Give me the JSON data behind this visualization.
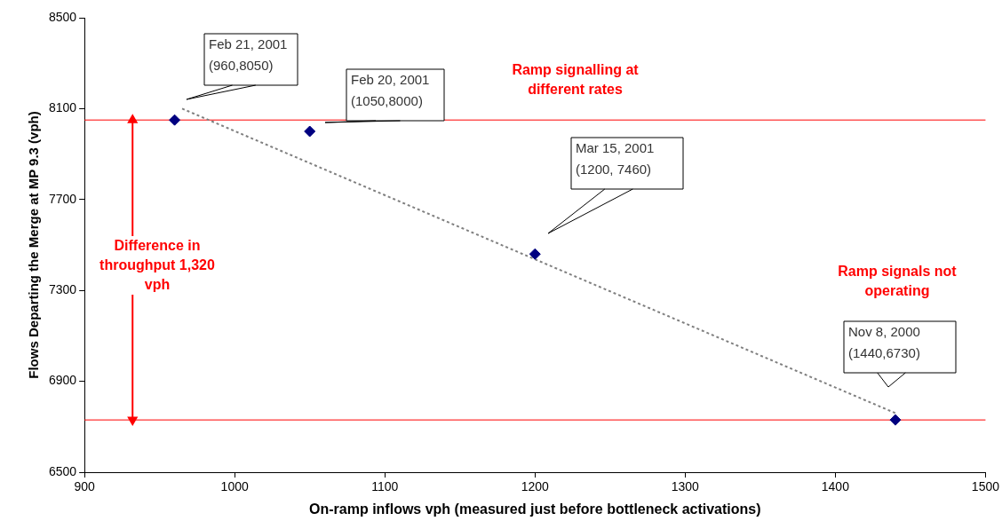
{
  "chart_data": {
    "type": "scatter",
    "xlabel": "On-ramp inflows vph (measured just before bottleneck activations)",
    "ylabel": "Flows Departing the Merge at MP 9.3 (vph)",
    "series": [
      {
        "type": "scatter",
        "color": "#000080",
        "x": [
          960,
          1050,
          1200,
          1440
        ],
        "values": [
          8050,
          8000,
          7460,
          6730
        ],
        "marker": "diamond"
      },
      {
        "type": "line",
        "color": "#808080",
        "x": [
          965,
          1440
        ],
        "values": [
          8100,
          6760
        ],
        "line_style": "dotted",
        "marker": "none"
      },
      {
        "type": "line",
        "color": "#ff0000",
        "x": [
          932,
          932
        ],
        "values": [
          8050,
          6730
        ],
        "line_style": "solid",
        "marker": "triangle"
      }
    ],
    "xlim": [
      900,
      1500
    ],
    "xticks": [
      900,
      1000,
      1100,
      1200,
      1300,
      1400,
      1500
    ],
    "ylim": [
      6500,
      8500
    ],
    "yticks": [
      6500,
      6900,
      7300,
      7700,
      8100,
      8500
    ],
    "grid": false,
    "legend": false,
    "ref_lines": [
      {
        "axis": "y",
        "value": 8050,
        "color": "#ff0000"
      },
      {
        "axis": "y",
        "value": 6730,
        "color": "#ff0000"
      }
    ],
    "annotations": [
      "Feb 21, 2001\n(960,8050)",
      "Feb 20, 2001\n(1050,8000)",
      "Mar 15, 2001\n(1200, 7460)",
      "Nov 8, 2000\n(1440,6730)",
      "Ramp signalling at different rates",
      "Ramp signals not operating",
      "Difference in throughput 1,320 vph"
    ]
  }
}
